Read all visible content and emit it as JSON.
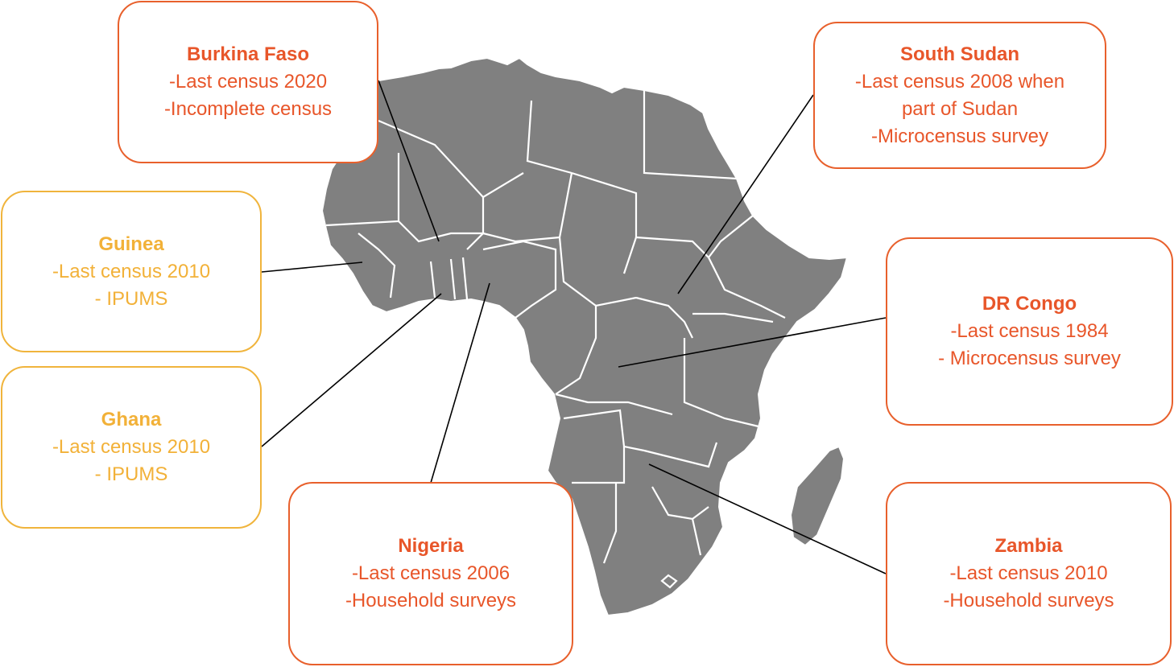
{
  "colors": {
    "land": "#808080",
    "borders": "#ffffff",
    "accent_orange": "#e8562a",
    "accent_yellow": "#f2b138",
    "connector": "#000000"
  },
  "callouts": [
    {
      "id": "burkina-faso",
      "name": "Burkina Faso",
      "lines": [
        "-Last census 2020",
        "-Incomplete census"
      ],
      "color": "orange"
    },
    {
      "id": "south-sudan",
      "name": "South Sudan",
      "lines": [
        "-Last census 2008 when",
        "part of Sudan",
        "-Microcensus survey"
      ],
      "color": "orange"
    },
    {
      "id": "guinea",
      "name": "Guinea",
      "lines": [
        "-Last census 2010",
        "- IPUMS"
      ],
      "color": "yellow"
    },
    {
      "id": "dr-congo",
      "name": "DR Congo",
      "lines": [
        "-Last census 1984",
        "- Microcensus survey"
      ],
      "color": "orange"
    },
    {
      "id": "ghana",
      "name": "Ghana",
      "lines": [
        "-Last census 2010",
        "- IPUMS"
      ],
      "color": "yellow"
    },
    {
      "id": "nigeria",
      "name": "Nigeria",
      "lines": [
        "-Last census 2006",
        "-Household surveys"
      ],
      "color": "orange"
    },
    {
      "id": "zambia",
      "name": "Zambia",
      "lines": [
        "-Last census 2010",
        "-Household surveys"
      ],
      "color": "orange"
    }
  ]
}
